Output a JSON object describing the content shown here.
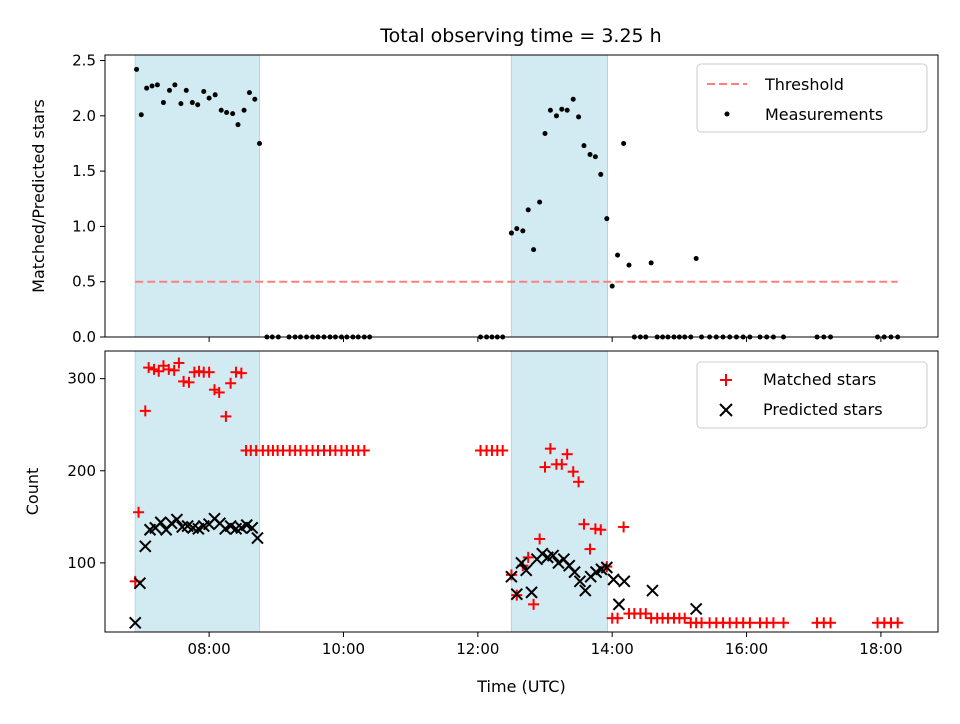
{
  "title": "Total observing time = 3.25 h",
  "colors": {
    "threshold": "#ff7f7f",
    "measurements": "#000000",
    "matched": "#ff0000",
    "predicted": "#000000",
    "span": "#add8e6"
  },
  "chart_data": [
    {
      "type": "scatter",
      "panel": "top",
      "title": "Total observing time = 3.25 h",
      "xlabel": "",
      "ylabel": "Matched/Predicted stars",
      "x_unit": "hours UTC",
      "xlim": [
        6.45,
        18.85
      ],
      "ylim": [
        0,
        2.55
      ],
      "yticks": [
        0.0,
        0.5,
        1.0,
        1.5,
        2.0,
        2.5
      ],
      "ytick_labels": [
        "0.0",
        "0.5",
        "1.0",
        "1.5",
        "2.0",
        "2.5"
      ],
      "legend": {
        "placement": "top-right",
        "entries": [
          "Threshold",
          "Measurements"
        ]
      },
      "shaded_spans": [
        [
          6.9,
          8.75
        ],
        [
          12.5,
          13.93
        ]
      ],
      "threshold": {
        "name": "Threshold",
        "value": 0.5,
        "x_range": [
          6.9,
          18.25
        ],
        "style": "dashed"
      },
      "series": [
        {
          "name": "Measurements",
          "x": [
            6.92,
            6.99,
            7.07,
            7.15,
            7.23,
            7.32,
            7.41,
            7.49,
            7.58,
            7.66,
            7.75,
            7.83,
            7.92,
            8.0,
            8.09,
            8.18,
            8.26,
            8.35,
            8.43,
            8.52,
            8.6,
            8.68,
            8.75,
            8.86,
            8.94,
            9.03,
            9.19,
            9.28,
            9.36,
            9.45,
            9.54,
            9.62,
            9.71,
            9.8,
            9.88,
            9.97,
            10.05,
            10.14,
            10.22,
            10.31,
            10.39,
            12.04,
            12.13,
            12.21,
            12.29,
            12.37,
            12.5,
            12.58,
            12.67,
            12.75,
            12.83,
            12.92,
            13.0,
            13.08,
            13.17,
            13.25,
            13.33,
            13.42,
            13.5,
            13.58,
            13.67,
            13.75,
            13.83,
            13.92,
            14.0,
            14.08,
            14.17,
            14.25,
            14.33,
            14.42,
            14.5,
            14.58,
            14.67,
            14.75,
            14.83,
            14.92,
            15.0,
            15.08,
            15.17,
            15.25,
            15.33,
            15.45,
            15.55,
            15.65,
            15.75,
            15.85,
            15.95,
            16.05,
            16.2,
            16.3,
            16.4,
            16.55,
            17.05,
            17.15,
            17.25,
            17.95,
            18.05,
            18.15,
            18.25
          ],
          "y": [
            2.42,
            2.01,
            2.25,
            2.27,
            2.28,
            2.12,
            2.23,
            2.28,
            2.11,
            2.23,
            2.12,
            2.1,
            2.22,
            2.16,
            2.19,
            2.05,
            2.03,
            2.02,
            1.92,
            2.05,
            2.21,
            2.15,
            1.75,
            0.0,
            0.0,
            0.0,
            0.0,
            0.0,
            0.0,
            0.0,
            0.0,
            0.0,
            0.0,
            0.0,
            0.0,
            0.0,
            0.0,
            0.0,
            0.0,
            0.0,
            0.0,
            0.0,
            0.0,
            0.0,
            0.0,
            0.0,
            0.94,
            0.98,
            0.96,
            1.15,
            0.79,
            1.22,
            1.84,
            2.05,
            2.0,
            2.06,
            2.05,
            2.15,
            1.99,
            1.73,
            1.65,
            1.63,
            1.47,
            1.07,
            0.46,
            0.74,
            1.75,
            0.65,
            0.0,
            0.0,
            0.0,
            0.67,
            0.0,
            0.0,
            0.0,
            0.0,
            0.0,
            0.0,
            0.0,
            0.71,
            0.0,
            0.0,
            0.0,
            0.0,
            0.0,
            0.0,
            0.0,
            0.0,
            0.0,
            0.0,
            0.0,
            0.0,
            0.0,
            0.0,
            0.0,
            0.0,
            0.0,
            0.0,
            0.0
          ]
        }
      ]
    },
    {
      "type": "scatter",
      "panel": "bottom",
      "xlabel": "Time (UTC)",
      "ylabel": "Count",
      "x_unit": "hours UTC",
      "xlim": [
        6.45,
        18.85
      ],
      "ylim": [
        25,
        330
      ],
      "xticks": [
        8,
        10,
        12,
        14,
        16,
        18
      ],
      "xtick_labels": [
        "08:00",
        "10:00",
        "12:00",
        "14:00",
        "16:00",
        "18:00"
      ],
      "yticks": [
        100,
        200,
        300
      ],
      "ytick_labels": [
        "100",
        "200",
        "300"
      ],
      "legend": {
        "placement": "top-right",
        "entries": [
          "Matched stars",
          "Predicted stars"
        ]
      },
      "shaded_spans": [
        [
          6.9,
          8.75
        ],
        [
          12.5,
          13.93
        ]
      ],
      "series": [
        {
          "name": "Matched stars",
          "marker": "plus",
          "x": [
            6.9,
            6.95,
            7.05,
            7.1,
            7.18,
            7.25,
            7.32,
            7.4,
            7.48,
            7.55,
            7.62,
            7.7,
            7.78,
            7.85,
            7.92,
            8.0,
            8.08,
            8.15,
            8.25,
            8.32,
            8.4,
            8.48,
            8.55,
            8.62,
            8.7,
            8.8,
            8.88,
            8.95,
            9.02,
            9.1,
            9.2,
            9.28,
            9.36,
            9.45,
            9.54,
            9.62,
            9.71,
            9.8,
            9.88,
            9.97,
            10.05,
            10.14,
            10.22,
            10.31,
            12.04,
            12.13,
            12.21,
            12.29,
            12.37,
            12.5,
            12.58,
            12.67,
            12.75,
            12.83,
            12.92,
            13.0,
            13.08,
            13.17,
            13.25,
            13.33,
            13.42,
            13.5,
            13.58,
            13.67,
            13.75,
            13.83,
            13.92,
            14.0,
            14.08,
            14.17,
            14.25,
            14.33,
            14.42,
            14.5,
            14.58,
            14.67,
            14.75,
            14.83,
            14.92,
            15.0,
            15.08,
            15.17,
            15.25,
            15.33,
            15.45,
            15.55,
            15.65,
            15.75,
            15.85,
            15.95,
            16.05,
            16.2,
            16.3,
            16.4,
            16.55,
            17.05,
            17.15,
            17.25,
            17.95,
            18.05,
            18.15,
            18.25
          ],
          "y": [
            80,
            155,
            265,
            312,
            310,
            308,
            314,
            310,
            309,
            317,
            297,
            296,
            307,
            308,
            307,
            307,
            288,
            285,
            259,
            295,
            307,
            306,
            222,
            222,
            222,
            222,
            222,
            222,
            222,
            222,
            222,
            222,
            222,
            222,
            222,
            222,
            222,
            222,
            222,
            222,
            222,
            222,
            222,
            222,
            222,
            222,
            222,
            222,
            222,
            87,
            65,
            97,
            106,
            55,
            126,
            204,
            224,
            207,
            207,
            218,
            199,
            188,
            142,
            115,
            137,
            136,
            96,
            40,
            40,
            139,
            45,
            45,
            45,
            45,
            40,
            40,
            40,
            40,
            40,
            40,
            40,
            35,
            35,
            35,
            35,
            35,
            35,
            35,
            35,
            35,
            35,
            35,
            35,
            35,
            35,
            35,
            35,
            35,
            35,
            35,
            35,
            35
          ]
        },
        {
          "name": "Predicted stars",
          "marker": "x",
          "x": [
            6.9,
            6.97,
            7.05,
            7.12,
            7.2,
            7.28,
            7.36,
            7.44,
            7.52,
            7.6,
            7.68,
            7.76,
            7.84,
            7.92,
            8.0,
            8.08,
            8.16,
            8.24,
            8.32,
            8.4,
            8.48,
            8.56,
            8.64,
            8.72,
            12.5,
            12.58,
            12.65,
            12.72,
            12.8,
            12.88,
            12.96,
            13.04,
            13.12,
            13.2,
            13.28,
            13.36,
            13.44,
            13.52,
            13.6,
            13.68,
            13.76,
            13.84,
            13.92,
            14.02,
            14.1,
            14.18,
            14.6,
            15.25
          ],
          "y": [
            35,
            78,
            118,
            136,
            138,
            144,
            136,
            143,
            147,
            139,
            140,
            138,
            137,
            140,
            142,
            148,
            143,
            137,
            140,
            137,
            138,
            141,
            138,
            127,
            85,
            66,
            100,
            92,
            68,
            104,
            110,
            106,
            108,
            100,
            104,
            97,
            90,
            80,
            70,
            85,
            90,
            93,
            95,
            82,
            55,
            80,
            70,
            50
          ]
        }
      ]
    }
  ]
}
